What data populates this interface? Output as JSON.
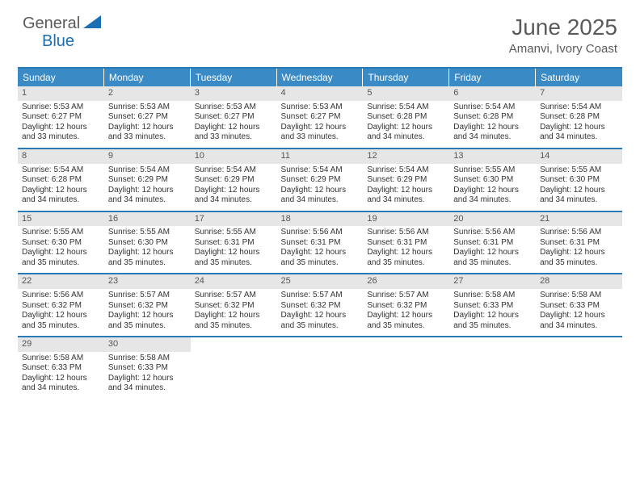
{
  "logo": {
    "text1": "General",
    "text2": "Blue"
  },
  "title": "June 2025",
  "location": "Amanvi, Ivory Coast",
  "colors": {
    "header_bg": "#3a8ac5",
    "border": "#2a7ab8",
    "daynum_bg": "#e6e6e6",
    "text_muted": "#5a5a5a",
    "blue": "#1a6fb5"
  },
  "dayheads": [
    "Sunday",
    "Monday",
    "Tuesday",
    "Wednesday",
    "Thursday",
    "Friday",
    "Saturday"
  ],
  "weeks": [
    [
      {
        "n": "1",
        "sr": "5:53 AM",
        "ss": "6:27 PM",
        "dl": "12 hours and 33 minutes."
      },
      {
        "n": "2",
        "sr": "5:53 AM",
        "ss": "6:27 PM",
        "dl": "12 hours and 33 minutes."
      },
      {
        "n": "3",
        "sr": "5:53 AM",
        "ss": "6:27 PM",
        "dl": "12 hours and 33 minutes."
      },
      {
        "n": "4",
        "sr": "5:53 AM",
        "ss": "6:27 PM",
        "dl": "12 hours and 33 minutes."
      },
      {
        "n": "5",
        "sr": "5:54 AM",
        "ss": "6:28 PM",
        "dl": "12 hours and 34 minutes."
      },
      {
        "n": "6",
        "sr": "5:54 AM",
        "ss": "6:28 PM",
        "dl": "12 hours and 34 minutes."
      },
      {
        "n": "7",
        "sr": "5:54 AM",
        "ss": "6:28 PM",
        "dl": "12 hours and 34 minutes."
      }
    ],
    [
      {
        "n": "8",
        "sr": "5:54 AM",
        "ss": "6:28 PM",
        "dl": "12 hours and 34 minutes."
      },
      {
        "n": "9",
        "sr": "5:54 AM",
        "ss": "6:29 PM",
        "dl": "12 hours and 34 minutes."
      },
      {
        "n": "10",
        "sr": "5:54 AM",
        "ss": "6:29 PM",
        "dl": "12 hours and 34 minutes."
      },
      {
        "n": "11",
        "sr": "5:54 AM",
        "ss": "6:29 PM",
        "dl": "12 hours and 34 minutes."
      },
      {
        "n": "12",
        "sr": "5:54 AM",
        "ss": "6:29 PM",
        "dl": "12 hours and 34 minutes."
      },
      {
        "n": "13",
        "sr": "5:55 AM",
        "ss": "6:30 PM",
        "dl": "12 hours and 34 minutes."
      },
      {
        "n": "14",
        "sr": "5:55 AM",
        "ss": "6:30 PM",
        "dl": "12 hours and 34 minutes."
      }
    ],
    [
      {
        "n": "15",
        "sr": "5:55 AM",
        "ss": "6:30 PM",
        "dl": "12 hours and 35 minutes."
      },
      {
        "n": "16",
        "sr": "5:55 AM",
        "ss": "6:30 PM",
        "dl": "12 hours and 35 minutes."
      },
      {
        "n": "17",
        "sr": "5:55 AM",
        "ss": "6:31 PM",
        "dl": "12 hours and 35 minutes."
      },
      {
        "n": "18",
        "sr": "5:56 AM",
        "ss": "6:31 PM",
        "dl": "12 hours and 35 minutes."
      },
      {
        "n": "19",
        "sr": "5:56 AM",
        "ss": "6:31 PM",
        "dl": "12 hours and 35 minutes."
      },
      {
        "n": "20",
        "sr": "5:56 AM",
        "ss": "6:31 PM",
        "dl": "12 hours and 35 minutes."
      },
      {
        "n": "21",
        "sr": "5:56 AM",
        "ss": "6:31 PM",
        "dl": "12 hours and 35 minutes."
      }
    ],
    [
      {
        "n": "22",
        "sr": "5:56 AM",
        "ss": "6:32 PM",
        "dl": "12 hours and 35 minutes."
      },
      {
        "n": "23",
        "sr": "5:57 AM",
        "ss": "6:32 PM",
        "dl": "12 hours and 35 minutes."
      },
      {
        "n": "24",
        "sr": "5:57 AM",
        "ss": "6:32 PM",
        "dl": "12 hours and 35 minutes."
      },
      {
        "n": "25",
        "sr": "5:57 AM",
        "ss": "6:32 PM",
        "dl": "12 hours and 35 minutes."
      },
      {
        "n": "26",
        "sr": "5:57 AM",
        "ss": "6:32 PM",
        "dl": "12 hours and 35 minutes."
      },
      {
        "n": "27",
        "sr": "5:58 AM",
        "ss": "6:33 PM",
        "dl": "12 hours and 35 minutes."
      },
      {
        "n": "28",
        "sr": "5:58 AM",
        "ss": "6:33 PM",
        "dl": "12 hours and 34 minutes."
      }
    ],
    [
      {
        "n": "29",
        "sr": "5:58 AM",
        "ss": "6:33 PM",
        "dl": "12 hours and 34 minutes."
      },
      {
        "n": "30",
        "sr": "5:58 AM",
        "ss": "6:33 PM",
        "dl": "12 hours and 34 minutes."
      },
      null,
      null,
      null,
      null,
      null
    ]
  ],
  "labels": {
    "sunrise": "Sunrise: ",
    "sunset": "Sunset: ",
    "daylight": "Daylight: "
  }
}
